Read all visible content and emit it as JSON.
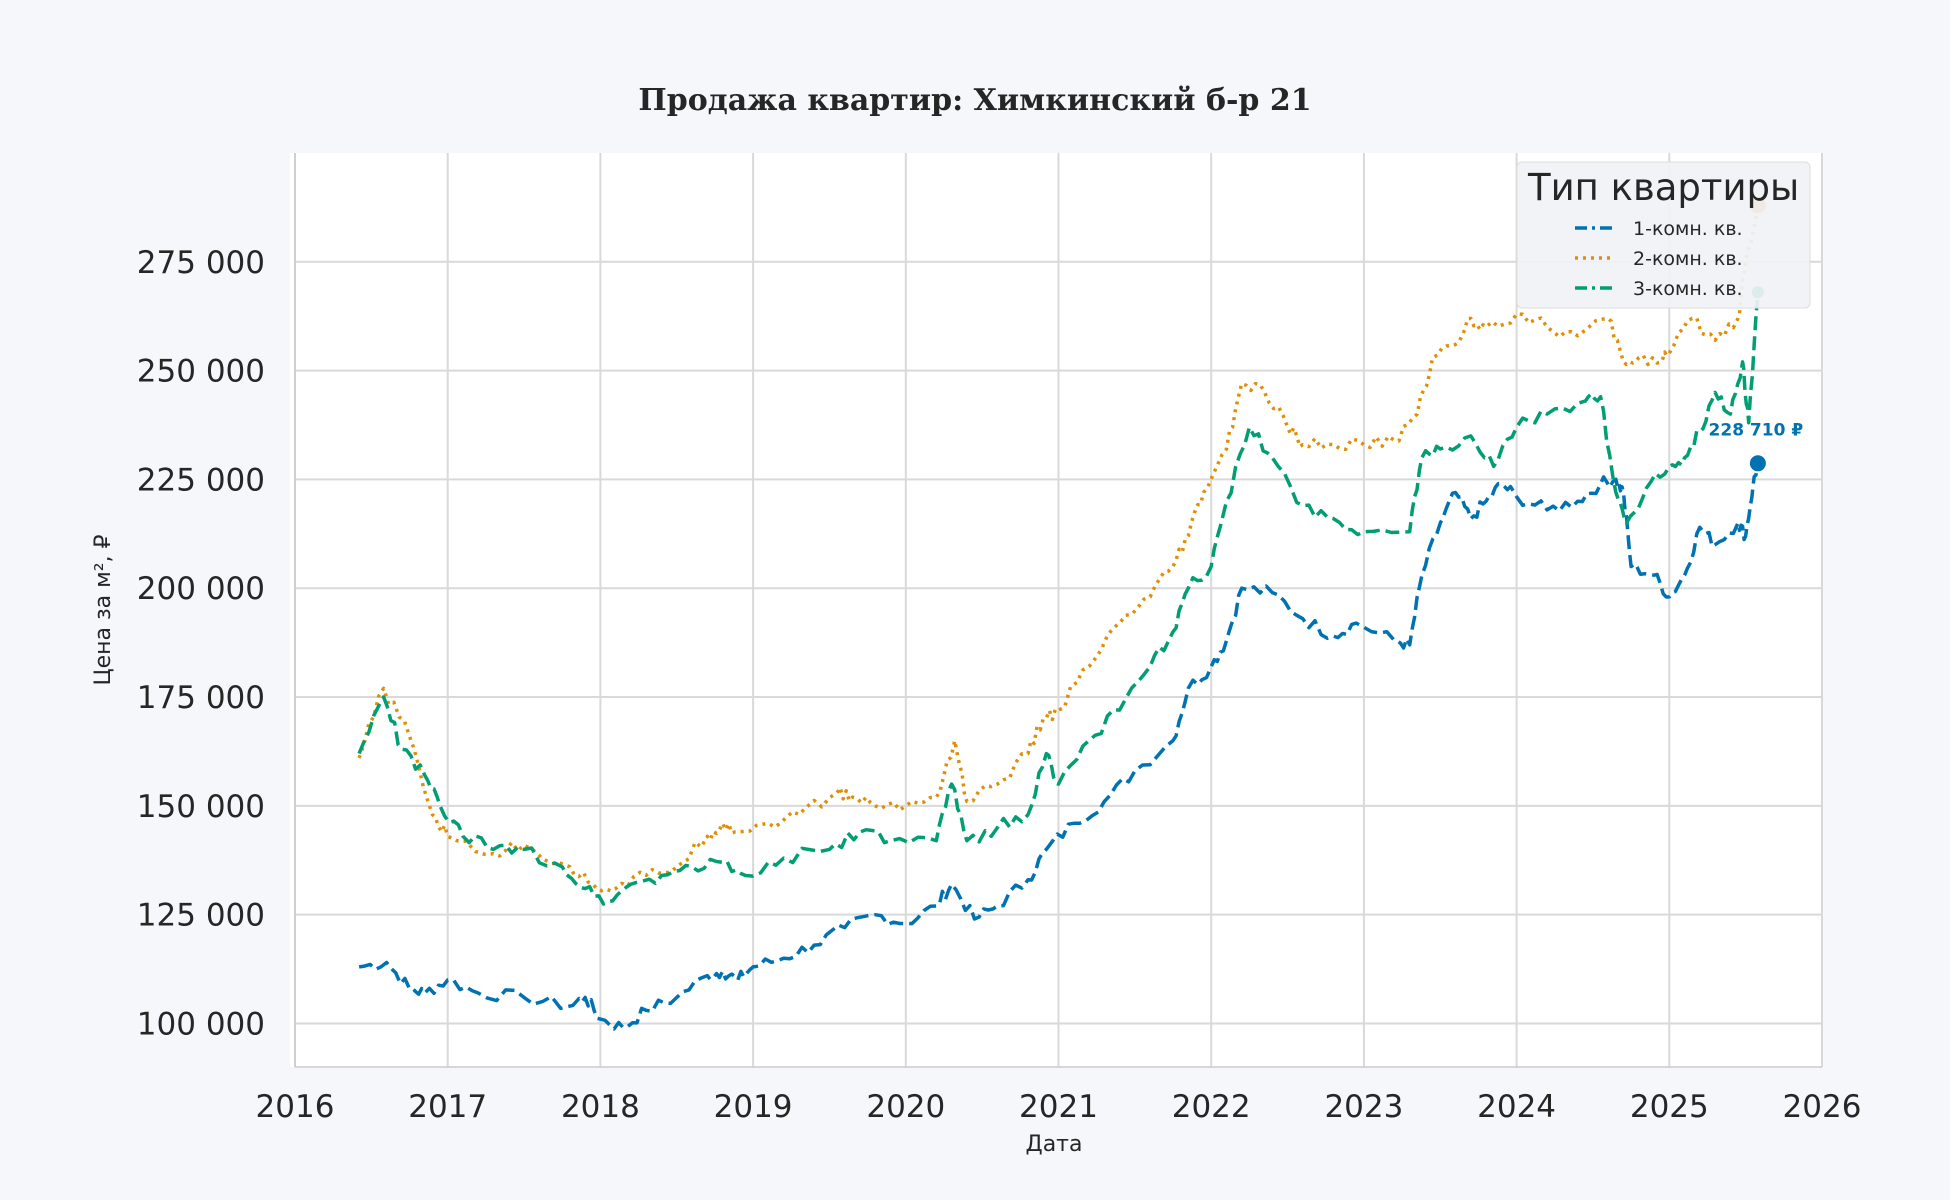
{
  "chart_data": {
    "type": "line",
    "title": "Продажа квартир: Химкинский б-р 21",
    "xlabel": "Дата",
    "ylabel": "Цена за м², ₽",
    "xlim": [
      2016.0,
      2026.0
    ],
    "ylim": [
      90000,
      300000
    ],
    "xticks": [
      2016,
      2017,
      2018,
      2019,
      2020,
      2021,
      2022,
      2023,
      2024,
      2025,
      2026
    ],
    "xtick_labels": [
      "2016",
      "2017",
      "2018",
      "2019",
      "2020",
      "2021",
      "2022",
      "2023",
      "2024",
      "2025",
      "2026"
    ],
    "yticks": [
      100000,
      125000,
      150000,
      175000,
      200000,
      225000,
      250000,
      275000
    ],
    "ytick_labels": [
      "100 000",
      "125 000",
      "150 000",
      "175 000",
      "200 000",
      "225 000",
      "250 000",
      "275 000"
    ],
    "grid": true,
    "legend": {
      "title": "Тип квартиры",
      "placement": "top-right"
    },
    "series": [
      {
        "name": "1-комн. кв.",
        "color": "#0072b2",
        "style": "dashed",
        "last_value_label": "228 710 ₽",
        "x": [
          2016.42,
          2016.6,
          2016.75,
          2016.85,
          2017.0,
          2017.2,
          2017.5,
          2017.8,
          2017.9,
          2018.0,
          2018.15,
          2018.3,
          2018.5,
          2018.7,
          2018.8,
          2018.9,
          2019.0,
          2019.2,
          2019.4,
          2019.6,
          2019.8,
          2020.0,
          2020.2,
          2020.3,
          2020.45,
          2020.6,
          2020.8,
          2020.92,
          2021.1,
          2021.3,
          2021.5,
          2021.75,
          2021.85,
          2022.0,
          2022.1,
          2022.2,
          2022.4,
          2022.6,
          2022.8,
          2022.95,
          2023.2,
          2023.3,
          2023.38,
          2023.5,
          2023.6,
          2023.7,
          2023.8,
          2023.9,
          2024.0,
          2024.2,
          2024.4,
          2024.55,
          2024.65,
          2024.7,
          2024.75,
          2024.9,
          2025.0,
          2025.1,
          2025.2,
          2025.3,
          2025.45,
          2025.5,
          2025.55,
          2025.58
        ],
        "y": [
          113000,
          114000,
          108000,
          107000,
          110000,
          107000,
          106000,
          104000,
          106000,
          101000,
          99000,
          103000,
          106000,
          111000,
          112000,
          110000,
          113000,
          115000,
          118000,
          122000,
          125000,
          123000,
          127000,
          132000,
          124000,
          127000,
          133000,
          140000,
          146000,
          151000,
          158000,
          165000,
          177000,
          182000,
          188000,
          200000,
          199000,
          193000,
          189000,
          192000,
          188000,
          187000,
          203000,
          215000,
          222000,
          216000,
          220000,
          224000,
          221000,
          218000,
          220000,
          224000,
          225000,
          222000,
          205000,
          203000,
          198000,
          203000,
          214000,
          210000,
          215000,
          212000,
          224000,
          228710
        ]
      },
      {
        "name": "2-комн. кв.",
        "color": "#de8f05",
        "style": "dotted",
        "last_value_label": "",
        "x": [
          2016.42,
          2016.58,
          2016.75,
          2016.9,
          2017.0,
          2017.3,
          2017.5,
          2017.8,
          2017.95,
          2018.1,
          2018.3,
          2018.5,
          2018.7,
          2018.8,
          2018.9,
          2019.1,
          2019.3,
          2019.55,
          2019.65,
          2019.8,
          2020.0,
          2020.2,
          2020.32,
          2020.4,
          2020.6,
          2020.8,
          2020.9,
          2021.0,
          2021.2,
          2021.4,
          2021.6,
          2021.75,
          2021.85,
          2021.95,
          2022.1,
          2022.2,
          2022.35,
          2022.5,
          2022.6,
          2022.8,
          2023.0,
          2023.2,
          2023.35,
          2023.45,
          2023.6,
          2023.7,
          2023.8,
          2024.0,
          2024.2,
          2024.4,
          2024.6,
          2024.7,
          2024.8,
          2024.95,
          2025.0,
          2025.15,
          2025.3,
          2025.45,
          2025.5,
          2025.58
        ],
        "y": [
          161000,
          177000,
          166000,
          148000,
          143000,
          139000,
          141000,
          136000,
          132000,
          131000,
          134000,
          136000,
          143000,
          146000,
          144000,
          146000,
          148000,
          153000,
          152000,
          150000,
          150000,
          152000,
          165000,
          151000,
          155000,
          162000,
          170000,
          172000,
          182000,
          192000,
          198000,
          205000,
          212000,
          222000,
          232000,
          247000,
          245000,
          237000,
          233000,
          233000,
          233000,
          234000,
          240000,
          253000,
          256000,
          262000,
          260000,
          263000,
          260000,
          258000,
          262000,
          252000,
          253000,
          252000,
          254000,
          262000,
          257000,
          262000,
          275000,
          288000
        ]
      },
      {
        "name": "3-комн. кв.",
        "color": "#029e73",
        "style": "dashed",
        "last_value_label": "",
        "x": [
          2016.42,
          2016.58,
          2016.7,
          2016.85,
          2016.95,
          2017.1,
          2017.3,
          2017.5,
          2017.75,
          2017.9,
          2018.05,
          2018.2,
          2018.4,
          2018.6,
          2018.8,
          2018.95,
          2019.2,
          2019.5,
          2019.7,
          2019.9,
          2020.2,
          2020.3,
          2020.4,
          2020.6,
          2020.8,
          2020.92,
          2021.0,
          2021.2,
          2021.4,
          2021.6,
          2021.75,
          2021.85,
          2022.0,
          2022.1,
          2022.25,
          2022.4,
          2022.6,
          2022.8,
          2023.0,
          2023.3,
          2023.38,
          2023.5,
          2023.7,
          2023.85,
          2024.0,
          2024.2,
          2024.45,
          2024.55,
          2024.65,
          2024.72,
          2024.85,
          2025.0,
          2025.1,
          2025.2,
          2025.3,
          2025.4,
          2025.48,
          2025.52,
          2025.58
        ],
        "y": [
          162000,
          175000,
          163000,
          157000,
          150000,
          143000,
          140000,
          140000,
          136000,
          131000,
          128000,
          132000,
          134000,
          136000,
          137000,
          134000,
          138000,
          140000,
          144000,
          142000,
          142000,
          155000,
          142000,
          145000,
          148000,
          162000,
          155000,
          165000,
          172000,
          182000,
          190000,
          200000,
          205000,
          220000,
          237000,
          230000,
          219000,
          216000,
          213000,
          213000,
          230000,
          232000,
          235000,
          228000,
          237000,
          240000,
          243000,
          244000,
          222000,
          215000,
          223000,
          228000,
          230000,
          236000,
          245000,
          240000,
          252000,
          238000,
          268000
        ]
      }
    ]
  }
}
